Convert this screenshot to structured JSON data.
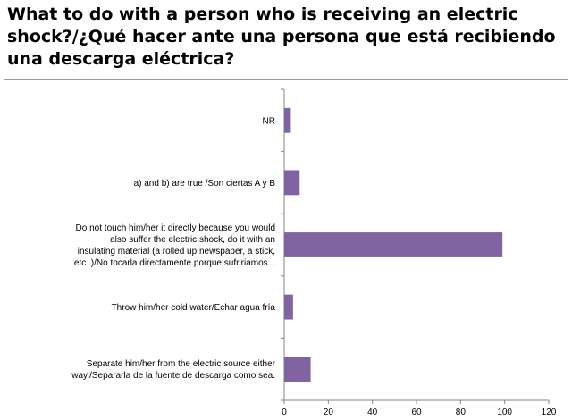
{
  "title": "What to do with a person who is receiving an electric shock?/¿Qué hacer ante una persona que está recibiendo una descarga eléctrica?",
  "chart_data": {
    "type": "bar",
    "orientation": "horizontal",
    "title": "What to do with a person who is receiving an electric shock?/¿Qué hacer ante una persona que está recibiendo una descarga eléctrica?",
    "categories": [
      [
        "NR"
      ],
      [
        "a) and b) are true /Son ciertas A y B"
      ],
      [
        "Do not touch him/her it directly because you would",
        "also suffer the electric shock, do it with an",
        "insulating material (a rolled up newspaper, a stick,",
        "etc..)/No tocarla directamente porque sufririamos..."
      ],
      [
        "Throw him/her cold water/Echar agua fría"
      ],
      [
        "Separate him/her from the electric source either",
        "way./Separarla de la fuente de descarga como sea."
      ]
    ],
    "values": [
      3,
      7,
      99,
      4,
      12
    ],
    "xlim": [
      0,
      120
    ],
    "xticks": [
      0,
      20,
      40,
      60,
      80,
      100,
      120
    ],
    "bar_color": "#8064a2",
    "grid": false,
    "legend": "none"
  }
}
